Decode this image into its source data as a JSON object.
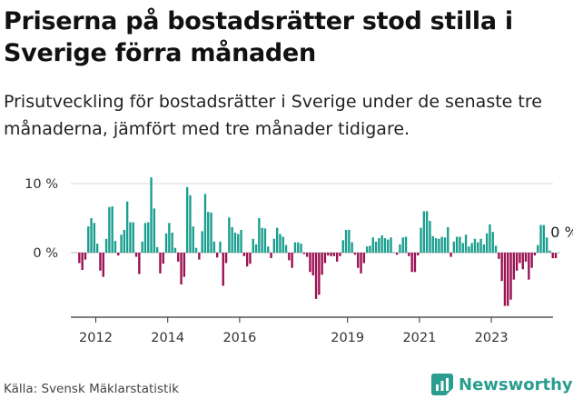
{
  "title": "Priserna på bostadsrätter stod stilla i Sverige förra månaden",
  "subtitle": "Prisutveckling för bostadsrätter i Sverige under de senaste tre månaderna, jämfört med tre månader tidigare.",
  "source": "Källa: Svensk Mäklarstatistik",
  "brand": "Newsworthy",
  "colors": {
    "positive": "#1a9e8f",
    "negative": "#9b1152",
    "axis": "#333333",
    "grid": "#cccccc",
    "brand": "#2a9d8f"
  },
  "chart_data": {
    "type": "bar",
    "xlabel": "",
    "ylabel": "",
    "yticks": [
      0,
      10
    ],
    "ytick_labels": [
      "0 %",
      "10 %"
    ],
    "ylim": [
      -9,
      11
    ],
    "xticks": [
      2012,
      2014,
      2016,
      2019,
      2021,
      2023
    ],
    "xlim": [
      2011.4,
      2024.4
    ],
    "last_label": "0 %",
    "start_year": 2011,
    "start_month": 7,
    "values": [
      -1.5,
      -2.5,
      -1,
      3.8,
      5,
      4.3,
      1.3,
      -2.6,
      -3.5,
      2,
      6.6,
      6.7,
      1.7,
      -0.4,
      2.6,
      3.3,
      7.4,
      4.4,
      4.4,
      -0.6,
      -3.1,
      1.6,
      4.3,
      4.4,
      10.9,
      6.4,
      0.8,
      -3.0,
      -1.6,
      2.8,
      4.3,
      2.9,
      0.7,
      -1.3,
      -4.6,
      -3.5,
      9.5,
      8.3,
      3.8,
      0.7,
      -1.0,
      3.1,
      8.5,
      5.9,
      5.8,
      1.6,
      -0.7,
      1.6,
      -4.8,
      -1.5,
      5.1,
      3.7,
      2.9,
      2.7,
      3.3,
      -0.5,
      -2.0,
      -1.6,
      2.0,
      1.2,
      5.0,
      3.6,
      3.5,
      0.9,
      -0.8,
      2.0,
      3.6,
      2.7,
      2.3,
      1.1,
      -1.1,
      -2.2,
      1.5,
      1.5,
      1.3,
      -0.2,
      -0.6,
      -2.8,
      -3.3,
      -6.7,
      -6.1,
      -3.2,
      -1.5,
      -0.4,
      -0.5,
      -0.5,
      -1.3,
      -0.5,
      1.8,
      3.3,
      3.3,
      1.5,
      -0.3,
      -2.2,
      -3.0,
      -1.5,
      0.9,
      1.0,
      2.2,
      1.6,
      2.1,
      2.5,
      2.1,
      1.9,
      2.2,
      0.0,
      -0.3,
      1.2,
      2.2,
      2.3,
      -0.5,
      -2.8,
      -2.8,
      -0.4,
      3.6,
      6.0,
      6.0,
      4.6,
      2.4,
      2.1,
      2.0,
      2.3,
      2.2,
      3.7,
      -0.6,
      1.6,
      2.3,
      2.3,
      1.4,
      2.6,
      0.9,
      1.4,
      2.0,
      1.5,
      2.0,
      1.2,
      2.8,
      4.1,
      3.0,
      1.0,
      -0.9,
      -4.1,
      -7.7,
      -7.7,
      -6.8,
      -3.9,
      -2.6,
      -1.5,
      -2.4,
      -1.3,
      -3.9,
      -2.2,
      -0.4,
      1.1,
      4.0,
      4.0,
      2.2,
      0.3,
      -0.8,
      -0.8,
      0.0
    ]
  }
}
